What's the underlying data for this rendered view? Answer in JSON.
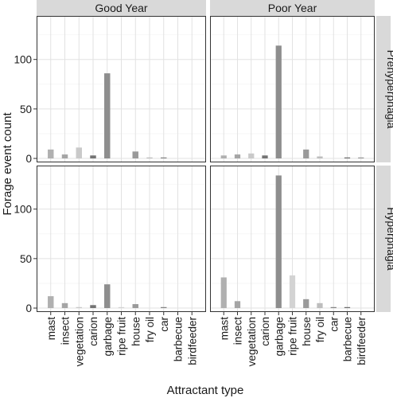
{
  "chart_data": {
    "type": "bar",
    "xlabel": "Attractant type",
    "ylabel": "Forage event count",
    "ylim": [
      -4,
      144
    ],
    "y_ticks": [
      0,
      50,
      100
    ],
    "grid": true,
    "categories": [
      "mast",
      "insect",
      "vegetation",
      "carion",
      "garbage",
      "ripe fruit",
      "house",
      "fry oil",
      "car",
      "barbecue",
      "birdfeeder"
    ],
    "columns": [
      "Good Year",
      "Poor Year"
    ],
    "rows": [
      "Prehyperphagia",
      "Hyperphagia"
    ],
    "bar_colors": [
      "#b0b0b0",
      "#a5a5a5",
      "#c9c9c9",
      "#737373",
      "#8e8e8e",
      "#d3d3d3",
      "#9a9a9a",
      "#bdbdbd",
      "#858585",
      "#6e6e6e",
      "#999999"
    ],
    "panels": [
      {
        "row": "Prehyperphagia",
        "column": "Good Year",
        "values": [
          9,
          4,
          11,
          3,
          86,
          0,
          7,
          1,
          1,
          0,
          0
        ]
      },
      {
        "row": "Prehyperphagia",
        "column": "Poor Year",
        "values": [
          3,
          4,
          5,
          3,
          114,
          0,
          9,
          2,
          0,
          1,
          1
        ]
      },
      {
        "row": "Hyperphagia",
        "column": "Good Year",
        "values": [
          12,
          5,
          1,
          3,
          24,
          1,
          4,
          0,
          1,
          0,
          0
        ]
      },
      {
        "row": "Hyperphagia",
        "column": "Poor Year",
        "values": [
          31,
          7,
          0,
          0,
          134,
          33,
          9,
          5,
          1,
          1,
          0
        ]
      }
    ]
  }
}
